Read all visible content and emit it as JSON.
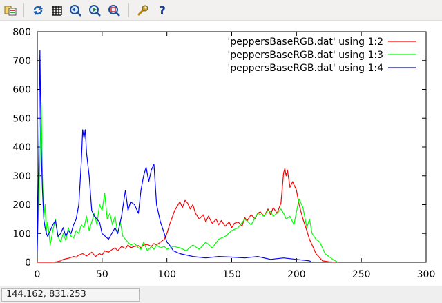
{
  "toolbar": {
    "buttons": [
      {
        "name": "export-icon"
      },
      {
        "name": "replot-icon"
      },
      {
        "name": "grid-icon"
      },
      {
        "name": "zoom-previous-icon"
      },
      {
        "name": "zoom-next-icon"
      },
      {
        "name": "autoscale-icon"
      },
      {
        "name": "options-icon"
      },
      {
        "name": "help-icon"
      }
    ]
  },
  "status": {
    "coordinates": "144.162,  831.253"
  },
  "chart_data": {
    "type": "line",
    "title": "",
    "xlabel": "",
    "ylabel": "",
    "xlim": [
      0,
      300
    ],
    "ylim": [
      0,
      800
    ],
    "xticks": [
      0,
      50,
      100,
      150,
      200,
      250,
      300
    ],
    "yticks": [
      0,
      100,
      200,
      300,
      400,
      500,
      600,
      700,
      800
    ],
    "grid": false,
    "legend_position": "top-right",
    "series": [
      {
        "name": "'peppersBaseRGB.dat' using 1:2",
        "color": "#ff0000",
        "x": [
          0,
          10,
          12,
          15,
          18,
          20,
          22,
          25,
          28,
          30,
          32,
          35,
          38,
          40,
          42,
          45,
          48,
          50,
          52,
          55,
          58,
          60,
          62,
          65,
          68,
          70,
          72,
          75,
          78,
          80,
          82,
          85,
          88,
          90,
          92,
          95,
          98,
          100,
          102,
          104,
          106,
          108,
          110,
          112,
          114,
          116,
          118,
          120,
          122,
          125,
          128,
          130,
          132,
          135,
          138,
          140,
          142,
          145,
          148,
          150,
          152,
          155,
          158,
          160,
          162,
          165,
          168,
          170,
          172,
          175,
          178,
          180,
          182,
          185,
          188,
          190,
          191,
          192,
          193,
          195,
          197,
          200,
          202,
          205,
          208,
          210,
          212,
          215,
          218,
          220,
          225,
          230
        ],
        "y": [
          0,
          0,
          0,
          2,
          5,
          10,
          12,
          15,
          20,
          18,
          25,
          30,
          22,
          28,
          35,
          20,
          30,
          25,
          40,
          35,
          45,
          50,
          40,
          55,
          48,
          60,
          50,
          55,
          58,
          50,
          60,
          62,
          55,
          65,
          60,
          70,
          80,
          100,
          130,
          155,
          180,
          195,
          210,
          190,
          215,
          205,
          185,
          200,
          170,
          150,
          165,
          140,
          160,
          135,
          150,
          130,
          145,
          125,
          140,
          120,
          135,
          140,
          125,
          155,
          145,
          165,
          150,
          170,
          175,
          160,
          185,
          165,
          190,
          170,
          205,
          310,
          325,
          300,
          320,
          260,
          280,
          250,
          200,
          150,
          110,
          80,
          60,
          30,
          15,
          5,
          2,
          0
        ]
      },
      {
        "name": "'peppersBaseRGB.dat' using 1:3",
        "color": "#00ff00",
        "x": [
          0,
          1,
          2,
          3,
          4,
          5,
          6,
          7,
          8,
          10,
          12,
          14,
          16,
          18,
          20,
          22,
          24,
          26,
          28,
          30,
          32,
          34,
          36,
          38,
          40,
          42,
          44,
          46,
          48,
          50,
          52,
          54,
          56,
          58,
          60,
          62,
          64,
          66,
          68,
          70,
          72,
          75,
          78,
          80,
          82,
          85,
          88,
          90,
          92,
          95,
          98,
          100,
          105,
          110,
          115,
          120,
          125,
          130,
          135,
          140,
          145,
          150,
          155,
          160,
          165,
          170,
          175,
          178,
          180,
          182,
          185,
          188,
          190,
          192,
          195,
          198,
          200,
          202,
          205,
          208,
          210,
          212,
          215,
          218,
          220,
          222,
          225,
          228,
          230,
          232
        ],
        "y": [
          60,
          200,
          350,
          555,
          300,
          150,
          200,
          100,
          140,
          60,
          110,
          150,
          90,
          70,
          100,
          75,
          120,
          90,
          85,
          110,
          100,
          130,
          120,
          160,
          110,
          140,
          170,
          130,
          200,
          180,
          240,
          150,
          170,
          130,
          160,
          100,
          140,
          90,
          80,
          70,
          60,
          65,
          50,
          45,
          70,
          40,
          55,
          45,
          60,
          50,
          55,
          45,
          55,
          50,
          40,
          60,
          45,
          70,
          50,
          80,
          90,
          110,
          120,
          150,
          130,
          170,
          160,
          180,
          175,
          160,
          170,
          185,
          170,
          150,
          160,
          130,
          175,
          220,
          190,
          120,
          150,
          100,
          80,
          70,
          50,
          30,
          20,
          10,
          5,
          0
        ]
      },
      {
        "name": "'peppersBaseRGB.dat' using 1:4",
        "color": "#0000ff",
        "x": [
          0,
          1,
          2,
          3,
          4,
          5,
          6,
          7,
          8,
          10,
          12,
          14,
          16,
          18,
          20,
          22,
          24,
          26,
          28,
          30,
          32,
          34,
          35,
          36,
          37,
          38,
          40,
          42,
          44,
          46,
          48,
          50,
          55,
          60,
          62,
          65,
          68,
          70,
          72,
          75,
          78,
          80,
          82,
          84,
          86,
          88,
          90,
          92,
          95,
          98,
          100,
          102,
          105,
          110,
          115,
          120,
          130,
          140,
          150,
          160,
          170,
          180,
          190,
          200,
          210,
          212
        ],
        "y": [
          40,
          350,
          735,
          400,
          250,
          150,
          120,
          100,
          90,
          110,
          130,
          145,
          90,
          100,
          120,
          90,
          110,
          100,
          130,
          150,
          200,
          350,
          460,
          430,
          460,
          380,
          300,
          180,
          160,
          150,
          140,
          100,
          80,
          120,
          100,
          160,
          250,
          180,
          210,
          200,
          170,
          250,
          300,
          330,
          280,
          320,
          340,
          200,
          140,
          100,
          70,
          60,
          40,
          30,
          25,
          20,
          15,
          20,
          18,
          15,
          20,
          10,
          15,
          10,
          5,
          0
        ]
      }
    ]
  }
}
